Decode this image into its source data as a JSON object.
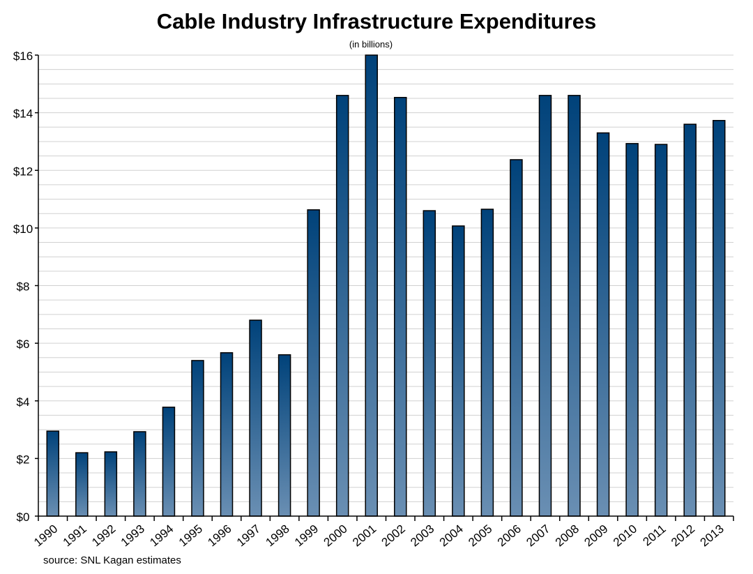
{
  "chart_data": {
    "type": "bar",
    "title": "Cable Industry Infrastructure Expenditures",
    "subtitle": "(in billions)",
    "source": "source: SNL Kagan estimates",
    "xlabel": "",
    "ylabel": "",
    "ylim": [
      0,
      16
    ],
    "yticks": [
      0,
      2,
      4,
      6,
      8,
      10,
      12,
      14,
      16
    ],
    "ytick_labels": [
      "$0",
      "$2",
      "$4",
      "$6",
      "$8",
      "$10",
      "$12",
      "$14",
      "$16"
    ],
    "minor_grid_step": 0.5,
    "grid": true,
    "categories": [
      "1990",
      "1991",
      "1992",
      "1993",
      "1994",
      "1995",
      "1996",
      "1997",
      "1998",
      "1999",
      "2000",
      "2001",
      "2002",
      "2003",
      "2004",
      "2005",
      "2006",
      "2007",
      "2008",
      "2009",
      "2010",
      "2011",
      "2012",
      "2013"
    ],
    "values": [
      2.95,
      2.2,
      2.23,
      2.93,
      3.78,
      5.4,
      5.67,
      6.8,
      5.6,
      10.63,
      14.6,
      16.0,
      14.53,
      10.6,
      10.07,
      10.65,
      12.37,
      14.6,
      14.6,
      13.3,
      12.93,
      12.9,
      13.6,
      13.73
    ],
    "colors": {
      "bar_top": "#00427a",
      "bar_bottom": "#6a8fb3",
      "grid": "#d0d0d0"
    }
  }
}
